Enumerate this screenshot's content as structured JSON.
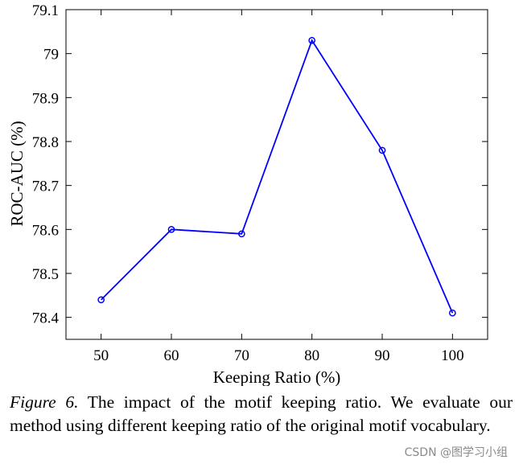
{
  "chart_data": {
    "type": "line",
    "title": "",
    "xlabel": "Keeping Ratio (%)",
    "ylabel": "ROC-AUC (%)",
    "x": [
      50,
      60,
      70,
      80,
      90,
      100
    ],
    "xticks": [
      "50",
      "60",
      "70",
      "80",
      "90",
      "100"
    ],
    "yticks": [
      "78.4",
      "78.5",
      "78.6",
      "78.7",
      "78.8",
      "78.9",
      "79",
      "79.1"
    ],
    "xlim": [
      45,
      105
    ],
    "ylim": [
      78.35,
      79.1
    ],
    "grid": false,
    "series": [
      {
        "values": [
          78.44,
          78.6,
          78.59,
          79.03,
          78.78,
          78.41
        ],
        "color": "#0000ff",
        "marker": "circle"
      }
    ]
  },
  "caption": {
    "label": "Figure 6.",
    "text": " The impact of the motif keeping ratio. We evaluate our method using different keeping ratio of the original motif vocabulary."
  },
  "watermark": "CSDN @图学习小组"
}
